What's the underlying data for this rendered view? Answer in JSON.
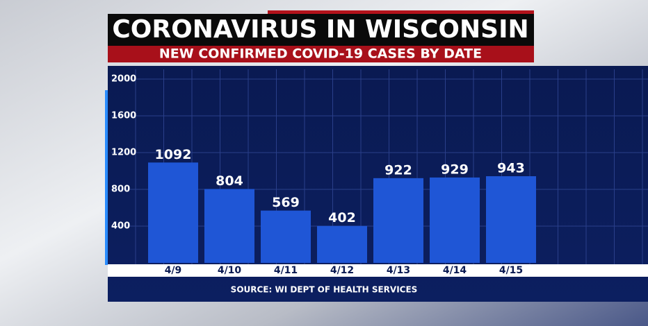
{
  "chart_data": {
    "type": "bar",
    "title": "CORONAVIRUS IN WISCONSIN",
    "subtitle": "NEW CONFIRMED COVID-19 CASES BY DATE",
    "source": "SOURCE: WI DEPT OF HEALTH SERVICES",
    "categories": [
      "4/9",
      "4/10",
      "4/11",
      "4/12",
      "4/13",
      "4/14",
      "4/15"
    ],
    "values": [
      1092,
      804,
      569,
      402,
      922,
      929,
      943
    ],
    "color": "#1f56d6",
    "ylim": [
      0,
      2000
    ],
    "yticks": [
      400,
      800,
      1200,
      1600,
      2000
    ],
    "grid": true
  }
}
